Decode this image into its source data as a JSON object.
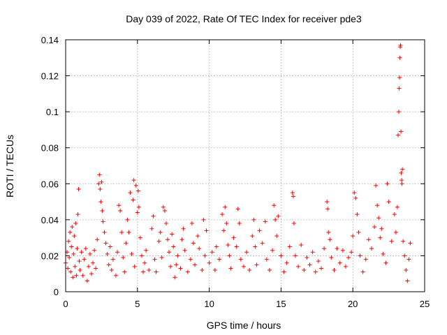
{
  "colors": {
    "series": "#ff0000",
    "grid": "#a0a0a0",
    "axes": "#000000",
    "background": "#ffffff"
  },
  "chart_data": {
    "type": "scatter",
    "title": "Day 039 of 2022, Rate Of TEC Index for receiver pde3",
    "xlabel": "GPS time / hours",
    "ylabel": "ROTI / TECUs",
    "xlim": [
      0,
      25
    ],
    "ylim": [
      0,
      0.14
    ],
    "x_ticks": [
      0,
      5,
      10,
      15,
      20,
      25
    ],
    "y_ticks": [
      0,
      0.02,
      0.04,
      0.06,
      0.08,
      0.1,
      0.12,
      0.14
    ],
    "grid": true,
    "marker": "plus",
    "series": [
      {
        "points": [
          [
            0.0,
            0.016
          ],
          [
            0.1,
            0.022
          ],
          [
            0.15,
            0.013
          ],
          [
            0.2,
            0.028
          ],
          [
            0.25,
            0.019
          ],
          [
            0.3,
            0.033
          ],
          [
            0.35,
            0.011
          ],
          [
            0.4,
            0.025
          ],
          [
            0.45,
            0.036
          ],
          [
            0.5,
            0.008
          ],
          [
            0.55,
            0.021
          ],
          [
            0.6,
            0.031
          ],
          [
            0.65,
            0.014
          ],
          [
            0.7,
            0.038
          ],
          [
            0.75,
            0.009
          ],
          [
            0.8,
            0.024
          ],
          [
            0.85,
            0.043
          ],
          [
            0.9,
            0.057
          ],
          [
            0.95,
            0.017
          ],
          [
            1.0,
            0.012
          ],
          [
            1.1,
            0.022
          ],
          [
            1.2,
            0.009
          ],
          [
            1.3,
            0.018
          ],
          [
            1.4,
            0.024
          ],
          [
            1.5,
            0.006
          ],
          [
            1.6,
            0.014
          ],
          [
            1.7,
            0.021
          ],
          [
            1.8,
            0.01
          ],
          [
            1.9,
            0.016
          ],
          [
            2.0,
            0.023
          ],
          [
            2.1,
            0.013
          ],
          [
            2.2,
            0.029
          ],
          [
            2.3,
            0.06
          ],
          [
            2.35,
            0.065
          ],
          [
            2.4,
            0.057
          ],
          [
            2.45,
            0.05
          ],
          [
            2.5,
            0.061
          ],
          [
            2.55,
            0.045
          ],
          [
            2.6,
            0.039
          ],
          [
            2.7,
            0.033
          ],
          [
            2.8,
            0.027
          ],
          [
            2.9,
            0.021
          ],
          [
            3.0,
            0.015
          ],
          [
            3.1,
            0.025
          ],
          [
            3.2,
            0.012
          ],
          [
            3.3,
            0.018
          ],
          [
            3.5,
            0.009
          ],
          [
            3.6,
            0.022
          ],
          [
            3.7,
            0.048
          ],
          [
            3.8,
            0.045
          ],
          [
            3.9,
            0.033
          ],
          [
            4.0,
            0.019
          ],
          [
            4.1,
            0.011
          ],
          [
            4.2,
            0.027
          ],
          [
            4.3,
            0.04
          ],
          [
            4.4,
            0.033
          ],
          [
            4.5,
            0.055
          ],
          [
            4.6,
            0.021
          ],
          [
            4.7,
            0.051
          ],
          [
            4.75,
            0.062
          ],
          [
            4.8,
            0.014
          ],
          [
            4.9,
            0.059
          ],
          [
            5.0,
            0.044
          ],
          [
            5.05,
            0.056
          ],
          [
            5.1,
            0.047
          ],
          [
            5.2,
            0.03
          ],
          [
            5.3,
            0.02
          ],
          [
            5.4,
            0.011
          ],
          [
            5.5,
            0.016
          ],
          [
            5.6,
            0.023
          ],
          [
            5.8,
            0.012
          ],
          [
            6.0,
            0.035
          ],
          [
            6.1,
            0.042
          ],
          [
            6.2,
            0.018
          ],
          [
            6.3,
            0.011
          ],
          [
            6.5,
            0.028
          ],
          [
            6.6,
            0.033
          ],
          [
            6.7,
            0.019
          ],
          [
            6.8,
            0.047
          ],
          [
            6.9,
            0.045
          ],
          [
            7.0,
            0.038
          ],
          [
            7.1,
            0.029
          ],
          [
            7.2,
            0.022
          ],
          [
            7.3,
            0.014
          ],
          [
            7.4,
            0.032
          ],
          [
            7.5,
            0.025
          ],
          [
            7.6,
            0.008
          ],
          [
            7.7,
            0.015
          ],
          [
            7.8,
            0.02
          ],
          [
            8.0,
            0.013
          ],
          [
            8.1,
            0.029
          ],
          [
            8.2,
            0.035
          ],
          [
            8.3,
            0.023
          ],
          [
            8.5,
            0.011
          ],
          [
            8.7,
            0.018
          ],
          [
            8.8,
            0.038
          ],
          [
            8.9,
            0.027
          ],
          [
            9.0,
            0.015
          ],
          [
            9.2,
            0.031
          ],
          [
            9.3,
            0.024
          ],
          [
            9.5,
            0.012
          ],
          [
            9.6,
            0.04
          ],
          [
            9.7,
            0.02
          ],
          [
            9.8,
            0.034
          ],
          [
            10.0,
            0.016
          ],
          [
            10.2,
            0.022
          ],
          [
            10.4,
            0.012
          ],
          [
            10.5,
            0.025
          ],
          [
            10.7,
            0.018
          ],
          [
            10.9,
            0.043
          ],
          [
            11.0,
            0.034
          ],
          [
            11.1,
            0.047
          ],
          [
            11.2,
            0.038
          ],
          [
            11.3,
            0.026
          ],
          [
            11.4,
            0.02
          ],
          [
            11.5,
            0.013
          ],
          [
            11.7,
            0.03
          ],
          [
            11.9,
            0.025
          ],
          [
            12.0,
            0.046
          ],
          [
            12.1,
            0.038
          ],
          [
            12.2,
            0.018
          ],
          [
            12.4,
            0.014
          ],
          [
            12.6,
            0.022
          ],
          [
            12.8,
            0.012
          ],
          [
            13.0,
            0.031
          ],
          [
            13.1,
            0.04
          ],
          [
            13.2,
            0.025
          ],
          [
            13.3,
            0.015
          ],
          [
            13.5,
            0.034
          ],
          [
            13.7,
            0.027
          ],
          [
            13.9,
            0.039
          ],
          [
            14.0,
            0.018
          ],
          [
            14.2,
            0.012
          ],
          [
            14.4,
            0.023
          ],
          [
            14.5,
            0.048
          ],
          [
            14.6,
            0.04
          ],
          [
            14.7,
            0.031
          ],
          [
            14.8,
            0.042
          ],
          [
            15.0,
            0.02
          ],
          [
            15.2,
            0.011
          ],
          [
            15.4,
            0.016
          ],
          [
            15.6,
            0.025
          ],
          [
            15.8,
            0.055
          ],
          [
            15.85,
            0.053
          ],
          [
            15.9,
            0.038
          ],
          [
            16.0,
            0.02
          ],
          [
            16.2,
            0.014
          ],
          [
            16.4,
            0.026
          ],
          [
            16.6,
            0.012
          ],
          [
            16.8,
            0.019
          ],
          [
            17.0,
            0.015
          ],
          [
            17.2,
            0.022
          ],
          [
            17.4,
            0.011
          ],
          [
            17.6,
            0.017
          ],
          [
            17.8,
            0.013
          ],
          [
            18.0,
            0.024
          ],
          [
            18.2,
            0.05
          ],
          [
            18.25,
            0.046
          ],
          [
            18.3,
            0.033
          ],
          [
            18.4,
            0.029
          ],
          [
            18.5,
            0.019
          ],
          [
            18.7,
            0.012
          ],
          [
            18.9,
            0.024
          ],
          [
            19.1,
            0.016
          ],
          [
            19.3,
            0.023
          ],
          [
            19.5,
            0.014
          ],
          [
            19.7,
            0.019
          ],
          [
            19.9,
            0.022
          ],
          [
            20.0,
            0.031
          ],
          [
            20.1,
            0.055
          ],
          [
            20.2,
            0.052
          ],
          [
            20.3,
            0.043
          ],
          [
            20.4,
            0.033
          ],
          [
            20.5,
            0.02
          ],
          [
            20.7,
            0.011
          ],
          [
            20.9,
            0.018
          ],
          [
            21.1,
            0.029
          ],
          [
            21.3,
            0.024
          ],
          [
            21.5,
            0.036
          ],
          [
            21.6,
            0.059
          ],
          [
            21.7,
            0.048
          ],
          [
            21.8,
            0.041
          ],
          [
            21.9,
            0.03
          ],
          [
            22.0,
            0.035
          ],
          [
            22.1,
            0.021
          ],
          [
            22.3,
            0.016
          ],
          [
            22.4,
            0.06
          ],
          [
            22.5,
            0.05
          ],
          [
            22.7,
            0.028
          ],
          [
            22.9,
            0.043
          ],
          [
            23.0,
            0.033
          ],
          [
            23.1,
            0.047
          ],
          [
            23.15,
            0.087
          ],
          [
            23.2,
            0.1
          ],
          [
            23.22,
            0.113
          ],
          [
            23.25,
            0.119
          ],
          [
            23.27,
            0.13
          ],
          [
            23.3,
            0.136
          ],
          [
            23.32,
            0.137
          ],
          [
            23.35,
            0.089
          ],
          [
            23.37,
            0.066
          ],
          [
            23.4,
            0.062
          ],
          [
            23.42,
            0.06
          ],
          [
            23.45,
            0.068
          ],
          [
            23.5,
            0.028
          ],
          [
            23.6,
            0.02
          ],
          [
            23.7,
            0.012
          ],
          [
            23.8,
            0.006
          ],
          [
            23.9,
            0.018
          ],
          [
            24.0,
            0.027
          ]
        ]
      }
    ]
  }
}
